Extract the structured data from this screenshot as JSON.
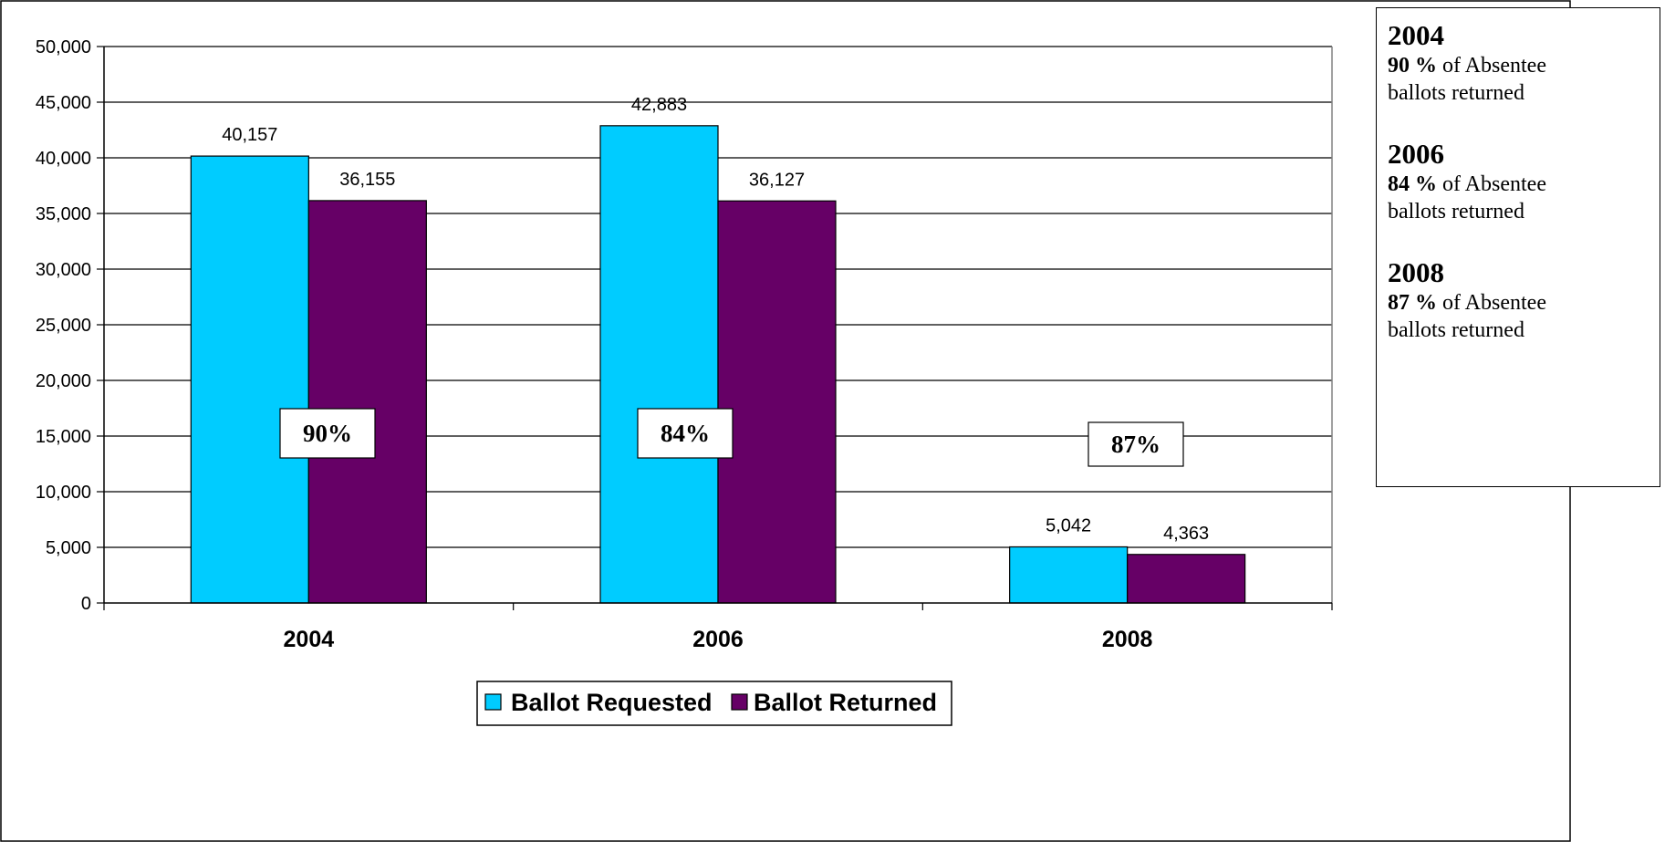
{
  "chart_data": {
    "type": "bar",
    "categories": [
      "2004",
      "2006",
      "2008"
    ],
    "series": [
      {
        "name": "Ballot Requested",
        "values": [
          40157,
          42883,
          5042
        ],
        "labels": [
          "40,157",
          "42,883",
          "5,042"
        ],
        "color": "#00CCFF"
      },
      {
        "name": "Ballot Returned",
        "values": [
          36155,
          36127,
          4363
        ],
        "labels": [
          "36,155",
          "36,127",
          "4,363"
        ],
        "color": "#660066"
      }
    ],
    "ylim": [
      0,
      50000
    ],
    "yticks": [
      0,
      5000,
      10000,
      15000,
      20000,
      25000,
      30000,
      35000,
      40000,
      45000,
      50000
    ],
    "ytick_labels": [
      "0",
      "5,000",
      "10,000",
      "15,000",
      "20,000",
      "25,000",
      "30,000",
      "35,000",
      "40,000",
      "45,000",
      "50,000"
    ],
    "grid": true,
    "legend_position": "bottom",
    "annotations": [
      "90%",
      "84%",
      "87%"
    ]
  },
  "notes": [
    {
      "year": "2004",
      "percent": "90 %",
      "text1": " of Absentee",
      "text2": "ballots returned"
    },
    {
      "year": "2006",
      "percent": "84 %",
      "text1": " of Absentee",
      "text2": "ballots returned"
    },
    {
      "year": "2008",
      "percent": "87 %",
      "text1": " of Absentee",
      "text2": "ballots returned"
    }
  ]
}
